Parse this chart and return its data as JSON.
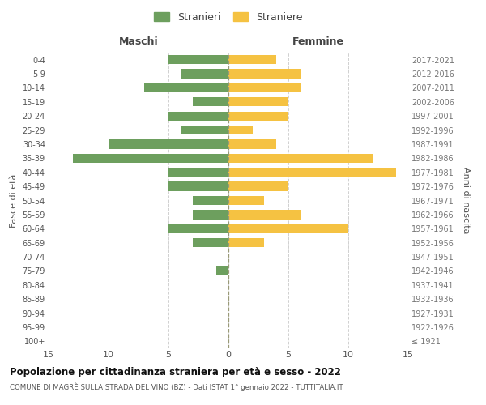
{
  "age_groups": [
    "100+",
    "95-99",
    "90-94",
    "85-89",
    "80-84",
    "75-79",
    "70-74",
    "65-69",
    "60-64",
    "55-59",
    "50-54",
    "45-49",
    "40-44",
    "35-39",
    "30-34",
    "25-29",
    "20-24",
    "15-19",
    "10-14",
    "5-9",
    "0-4"
  ],
  "birth_years": [
    "≤ 1921",
    "1922-1926",
    "1927-1931",
    "1932-1936",
    "1937-1941",
    "1942-1946",
    "1947-1951",
    "1952-1956",
    "1957-1961",
    "1962-1966",
    "1967-1971",
    "1972-1976",
    "1977-1981",
    "1982-1986",
    "1987-1991",
    "1992-1996",
    "1997-2001",
    "2002-2006",
    "2007-2011",
    "2012-2016",
    "2017-2021"
  ],
  "males": [
    0,
    0,
    0,
    0,
    0,
    1,
    0,
    3,
    5,
    3,
    3,
    5,
    5,
    13,
    10,
    4,
    5,
    3,
    7,
    4,
    5
  ],
  "females": [
    0,
    0,
    0,
    0,
    0,
    0,
    0,
    3,
    10,
    6,
    3,
    5,
    14,
    12,
    4,
    2,
    5,
    5,
    6,
    6,
    4
  ],
  "male_color": "#6d9f5e",
  "female_color": "#f5c242",
  "title": "Popolazione per cittadinanza straniera per età e sesso - 2022",
  "subtitle": "COMUNE DI MAGRÈ SULLA STRADA DEL VINO (BZ) - Dati ISTAT 1° gennaio 2022 - TUTTITALIA.IT",
  "xlabel_left": "Maschi",
  "xlabel_right": "Femmine",
  "ylabel_left": "Fasce di età",
  "ylabel_right": "Anni di nascita",
  "legend_male": "Stranieri",
  "legend_female": "Straniere",
  "xlim": 15,
  "background_color": "#ffffff",
  "grid_color": "#d0d0d0"
}
